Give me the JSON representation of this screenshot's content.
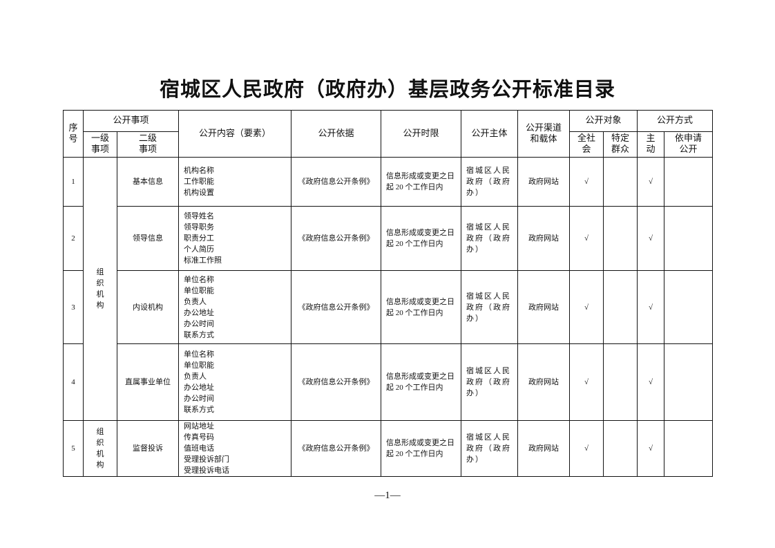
{
  "title": "宿城区人民政府（政府办）基层政务公开标准目录",
  "headers": {
    "seq": "序号",
    "item": "公开事项",
    "level1": "一级事项",
    "level2": "二级事项",
    "content": "公开内容（要素）",
    "basis": "公开依据",
    "time_limit": "公开时限",
    "subject": "公开主体",
    "channel": "公开渠道和载体",
    "audience": "公开对象",
    "audience_all": "全社会",
    "audience_specific": "特定群众",
    "method": "公开方式",
    "method_active": "主动",
    "method_request": "依申请公开"
  },
  "rows": [
    {
      "seq": "1",
      "level1": "组织机构",
      "level2": "基本信息",
      "content": [
        "机构名称",
        "工作职能",
        "机构设置"
      ],
      "basis": "《政府信息公开条例》",
      "time_limit": "信息形成或变更之日起 20 个工作日内",
      "subject": "宿城区人民政府（政府办）",
      "channel": "政府网站",
      "all": "√",
      "specific": "",
      "active": "√",
      "request": ""
    },
    {
      "seq": "2",
      "level2": "领导信息",
      "content": [
        "领导姓名",
        "领导职务",
        "职责分工",
        "个人简历",
        "标准工作照"
      ],
      "basis": "《政府信息公开条例》",
      "time_limit": "信息形成或变更之日起 20 个工作日内",
      "subject": "宿城区人民政府（政府办）",
      "channel": "政府网站",
      "all": "√",
      "specific": "",
      "active": "√",
      "request": ""
    },
    {
      "seq": "3",
      "level2": "内设机构",
      "content": [
        "单位名称",
        "单位职能",
        "负责人",
        "办公地址",
        "办公时间",
        "联系方式"
      ],
      "basis": "《政府信息公开条例》",
      "time_limit": "信息形成或变更之日起 20 个工作日内",
      "subject": "宿城区人民政府（政府办）",
      "channel": "政府网站",
      "all": "√",
      "specific": "",
      "active": "√",
      "request": ""
    },
    {
      "seq": "4",
      "level2": "直属事业单位",
      "content": [
        "单位名称",
        "单位职能",
        "负责人",
        "办公地址",
        "办公时间",
        "联系方式"
      ],
      "basis": "《政府信息公开条例》",
      "time_limit": "信息形成或变更之日起 20 个工作日内",
      "subject": "宿城区人民政府（政府办）",
      "channel": "政府网站",
      "all": "√",
      "specific": "",
      "active": "√",
      "request": ""
    },
    {
      "seq": "5",
      "level1": "组织机构",
      "level2": "监督投诉",
      "content": [
        "网站地址",
        "传真号码",
        "值班电话",
        "受理投诉部门",
        "受理投诉电话"
      ],
      "basis": "《政府信息公开条例》",
      "time_limit": "信息形成或变更之日起 20 个工作日内",
      "subject": "宿城区人民政府（政府办）",
      "channel": "政府网站",
      "all": "√",
      "specific": "",
      "active": "√",
      "request": ""
    }
  ],
  "footer": "—1—"
}
